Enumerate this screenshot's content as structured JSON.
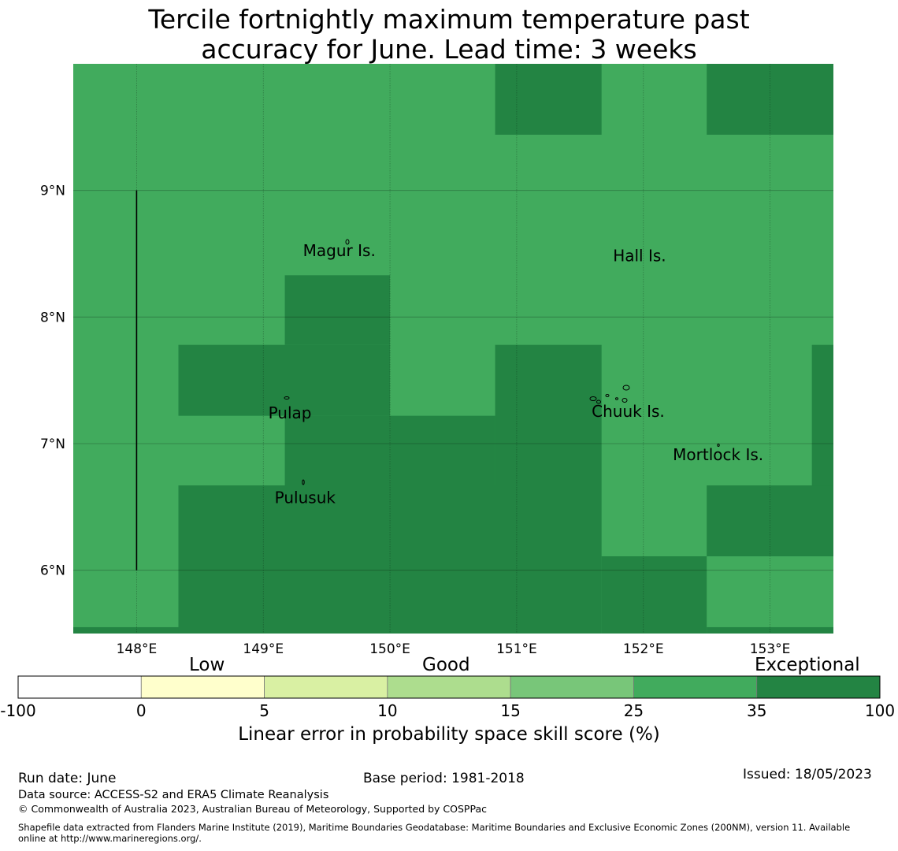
{
  "title_line1": "Tercile fortnightly maximum temperature past",
  "title_line2": "accuracy for June. Lead time: 3 weeks",
  "map": {
    "lon_range": [
      147.5,
      153.5
    ],
    "lat_range": [
      5.5,
      10.0
    ],
    "grid": "on",
    "lon_ticks": [
      {
        "value": 148,
        "label": "148°E"
      },
      {
        "value": 149,
        "label": "149°E"
      },
      {
        "value": 150,
        "label": "150°E"
      },
      {
        "value": 151,
        "label": "151°E"
      },
      {
        "value": 152,
        "label": "152°E"
      },
      {
        "value": 153,
        "label": "153°E"
      }
    ],
    "lat_ticks": [
      {
        "value": 9,
        "label": "9°N"
      },
      {
        "value": 8,
        "label": "8°N"
      },
      {
        "value": 7,
        "label": "7°N"
      },
      {
        "value": 6,
        "label": "6°N"
      }
    ],
    "base_color": "#41ab5d",
    "high_color": "#238443",
    "exceptional_cells": [
      {
        "lon": [
          150.83,
          151.67
        ],
        "lat": [
          9.44,
          10.0
        ]
      },
      {
        "lon": [
          152.5,
          153.5
        ],
        "lat": [
          9.44,
          10.0
        ]
      },
      {
        "lon": [
          149.17,
          150.0
        ],
        "lat": [
          7.78,
          8.33
        ]
      },
      {
        "lon": [
          148.33,
          150.0
        ],
        "lat": [
          7.22,
          7.78
        ]
      },
      {
        "lon": [
          149.17,
          150.0
        ],
        "lat": [
          6.67,
          7.22
        ]
      },
      {
        "lon": [
          150.0,
          150.83
        ],
        "lat": [
          6.67,
          7.22
        ]
      },
      {
        "lon": [
          150.83,
          151.67
        ],
        "lat": [
          6.67,
          7.78
        ]
      },
      {
        "lon": [
          153.33,
          153.5
        ],
        "lat": [
          6.11,
          7.78
        ]
      },
      {
        "lon": [
          148.33,
          151.67
        ],
        "lat": [
          5.5,
          6.67
        ]
      },
      {
        "lon": [
          151.67,
          152.5
        ],
        "lat": [
          5.5,
          6.11
        ]
      },
      {
        "lon": [
          152.5,
          153.5
        ],
        "lat": [
          6.11,
          6.67
        ]
      },
      {
        "lon": [
          147.5,
          148.33
        ],
        "lat": [
          5.5,
          5.55
        ]
      },
      {
        "lon": [
          152.5,
          153.5
        ],
        "lat": [
          5.5,
          5.55
        ]
      }
    ],
    "boundary_line": {
      "lon": 148.0,
      "lat": [
        6.0,
        9.0
      ]
    },
    "places": [
      {
        "name": "Magur Is.",
        "lon": 149.6,
        "lat": 8.53
      },
      {
        "name": "Hall Is.",
        "lon": 151.97,
        "lat": 8.49
      },
      {
        "name": "Pulap",
        "lon": 149.21,
        "lat": 7.25
      },
      {
        "name": "Chuuk Is.",
        "lon": 151.88,
        "lat": 7.26
      },
      {
        "name": "Mortlock Is.",
        "lon": 152.59,
        "lat": 6.92
      },
      {
        "name": "Pulusuk",
        "lon": 149.33,
        "lat": 6.58
      }
    ]
  },
  "colorbar": {
    "categories": [
      "Low",
      "Good",
      "Exceptional"
    ],
    "ticks": [
      "-100",
      "0",
      "5",
      "10",
      "15",
      "25",
      "35",
      "100"
    ],
    "colors": [
      "#ffffff",
      "#ffffcc",
      "#d9f0a3",
      "#addd8e",
      "#78c679",
      "#41ab5d",
      "#238443"
    ],
    "title": "Linear error in probability space skill score (%)"
  },
  "footer": {
    "run_date": "Run date: June",
    "base_period": "Base period: 1981-2018",
    "issued": "Issued: 18/05/2023",
    "data_source": "Data source: ACCESS-S2 and ERA5 Climate Reanalysis",
    "copyright": "© Commonwealth of Australia 2023, Australian Bureau of Meteorology, Supported by COSPPac",
    "shapefile_line1": "Shapefile data extracted from Flanders Marine Institute (2019), Maritime Boundaries Geodatabase: Maritime Boundaries and Exclusive Economic Zones (200NM), version 11. Available",
    "shapefile_line2": "online at http://www.marineregions.org/."
  }
}
